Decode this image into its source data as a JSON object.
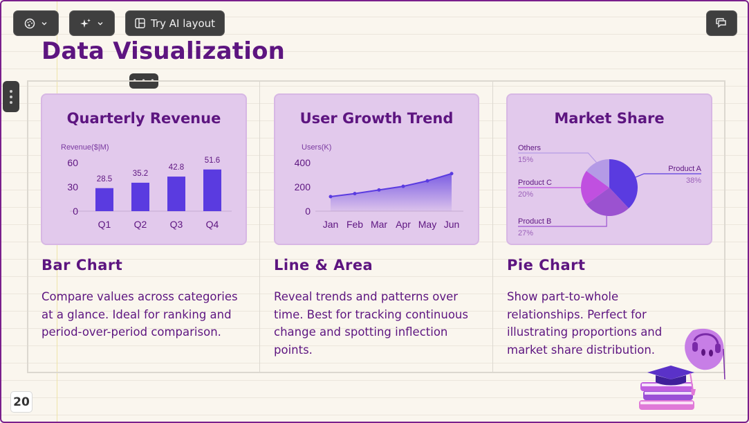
{
  "toolbar": {
    "theme_icon": "palette-icon",
    "ai_icon": "sparkle-icon",
    "layout_label": "Try AI layout",
    "layout_icon": "layout-icon",
    "comment_icon": "comment-icon"
  },
  "slide": {
    "title": "Data Visualization",
    "page_number": "20",
    "colors": {
      "title": "#5d1580",
      "card_bg": "#e2c9ec",
      "bar": "#5a3be0",
      "background": "#faf6ee"
    }
  },
  "cards": [
    {
      "title": "Quarterly Revenue",
      "heading": "Bar Chart",
      "description": "Compare values across categories at a glance. Ideal for ranking and period-over-period comparison."
    },
    {
      "title": "User Growth Trend",
      "heading": "Line & Area",
      "description": "Reveal trends and patterns over time. Best for tracking continuous change and spotting inflection points."
    },
    {
      "title": "Market Share",
      "heading": "Pie Chart",
      "description": "Show part-to-whole relationships. Perfect for illustrating proportions and market share distribution."
    }
  ],
  "chart_data": [
    {
      "type": "bar",
      "title": "Quarterly Revenue",
      "ylabel": "Revenue($|M)",
      "categories": [
        "Q1",
        "Q2",
        "Q3",
        "Q4"
      ],
      "values": [
        28.5,
        35.2,
        42.8,
        51.6
      ],
      "value_labels": [
        "28.5",
        "35.2",
        "42.8",
        "51.6"
      ],
      "yticks": [
        "0",
        "30",
        "60"
      ],
      "ylim": [
        0,
        60
      ],
      "color": "#5a3be0"
    },
    {
      "type": "area",
      "title": "User Growth Trend",
      "ylabel": "Users(K)",
      "categories": [
        "Jan",
        "Feb",
        "Mar",
        "Apr",
        "May",
        "Jun"
      ],
      "values": [
        120,
        145,
        175,
        205,
        250,
        310
      ],
      "yticks": [
        "0",
        "200",
        "400"
      ],
      "ylim": [
        0,
        400
      ],
      "color": "#5a3be0"
    },
    {
      "type": "pie",
      "title": "Market Share",
      "slices": [
        {
          "name": "Product A",
          "label": "38%",
          "value": 38,
          "color": "#5a3be0"
        },
        {
          "name": "Product B",
          "label": "27%",
          "value": 27,
          "color": "#9b52d0"
        },
        {
          "name": "Product C",
          "label": "20%",
          "value": 20,
          "color": "#c050e0"
        },
        {
          "name": "Others",
          "label": "15%",
          "value": 15,
          "color": "#b49ae6"
        }
      ]
    }
  ]
}
